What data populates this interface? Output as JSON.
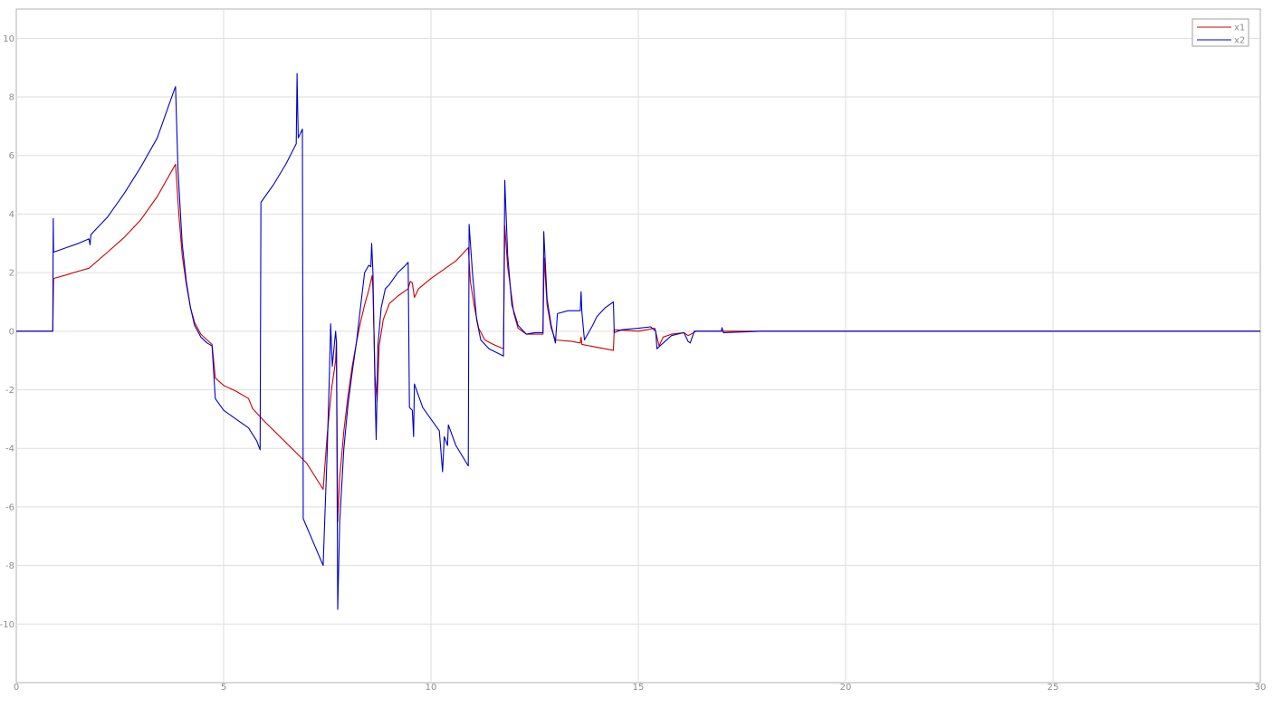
{
  "chart_data": {
    "type": "line",
    "title": "",
    "xlabel": "",
    "ylabel": "",
    "xlim": [
      0,
      30
    ],
    "ylim": [
      -12,
      11
    ],
    "grid": true,
    "legend_position": "top-right",
    "x_ticks": [
      0,
      5,
      10,
      15,
      20,
      25,
      30
    ],
    "x_tick_labels": [
      "0",
      "5",
      "10",
      "15",
      "20",
      "25",
      "30"
    ],
    "y_ticks": [
      10,
      8,
      6,
      4,
      2,
      0,
      -2,
      -4,
      -6,
      -8,
      -10
    ],
    "y_tick_labels": [
      "10",
      "8",
      "6",
      "4",
      "2",
      "0",
      "-2",
      "-4",
      "-6",
      "-8",
      "-10"
    ],
    "series": [
      {
        "name": "x1",
        "color": "#cc0000",
        "points": [
          [
            0,
            0
          ],
          [
            0.88,
            0
          ],
          [
            0.9,
            1.8
          ],
          [
            1.2,
            1.92
          ],
          [
            1.5,
            2.05
          ],
          [
            1.75,
            2.15
          ],
          [
            2.2,
            2.7
          ],
          [
            2.6,
            3.2
          ],
          [
            3.0,
            3.8
          ],
          [
            3.4,
            4.6
          ],
          [
            3.8,
            5.6
          ],
          [
            3.84,
            5.7
          ],
          [
            3.92,
            4.0
          ],
          [
            4.0,
            2.6
          ],
          [
            4.1,
            1.6
          ],
          [
            4.2,
            0.8
          ],
          [
            4.3,
            0.3
          ],
          [
            4.45,
            -0.1
          ],
          [
            4.6,
            -0.3
          ],
          [
            4.72,
            -0.45
          ],
          [
            4.8,
            -1.6
          ],
          [
            5.0,
            -1.85
          ],
          [
            5.3,
            -2.05
          ],
          [
            5.6,
            -2.3
          ],
          [
            5.7,
            -2.65
          ],
          [
            6.0,
            -3.1
          ],
          [
            6.5,
            -3.8
          ],
          [
            7.0,
            -4.5
          ],
          [
            7.4,
            -5.4
          ],
          [
            7.5,
            -3.5
          ],
          [
            7.6,
            -2.0
          ],
          [
            7.7,
            -1.0
          ],
          [
            7.72,
            -0.3
          ],
          [
            7.75,
            -6.5
          ],
          [
            7.8,
            -5.0
          ],
          [
            7.9,
            -3.4
          ],
          [
            8.0,
            -2.2
          ],
          [
            8.1,
            -1.2
          ],
          [
            8.2,
            -0.4
          ],
          [
            8.3,
            0.3
          ],
          [
            8.4,
            0.9
          ],
          [
            8.5,
            1.4
          ],
          [
            8.58,
            1.9
          ],
          [
            8.6,
            1.4
          ],
          [
            8.65,
            -1.5
          ],
          [
            8.7,
            -2.4
          ],
          [
            8.75,
            -0.5
          ],
          [
            8.85,
            0.4
          ],
          [
            9.0,
            0.95
          ],
          [
            9.2,
            1.2
          ],
          [
            9.45,
            1.45
          ],
          [
            9.5,
            1.7
          ],
          [
            9.55,
            1.65
          ],
          [
            9.6,
            1.15
          ],
          [
            9.7,
            1.45
          ],
          [
            10.0,
            1.8
          ],
          [
            10.3,
            2.1
          ],
          [
            10.6,
            2.4
          ],
          [
            10.9,
            2.85
          ],
          [
            10.95,
            1.7
          ],
          [
            11.05,
            0.8
          ],
          [
            11.15,
            0.1
          ],
          [
            11.3,
            -0.3
          ],
          [
            11.5,
            -0.45
          ],
          [
            11.75,
            -0.6
          ],
          [
            11.78,
            3.6
          ],
          [
            11.85,
            2.2
          ],
          [
            12.0,
            0.6
          ],
          [
            12.1,
            0.1
          ],
          [
            12.3,
            -0.1
          ],
          [
            12.7,
            -0.1
          ],
          [
            12.73,
            2.5
          ],
          [
            12.8,
            0.9
          ],
          [
            12.9,
            0.1
          ],
          [
            13.0,
            -0.3
          ],
          [
            13.4,
            -0.35
          ],
          [
            13.6,
            -0.4
          ],
          [
            13.62,
            -0.2
          ],
          [
            13.64,
            -0.45
          ],
          [
            14.0,
            -0.55
          ],
          [
            14.4,
            -0.65
          ],
          [
            14.42,
            0.05
          ],
          [
            15.0,
            0.0
          ],
          [
            15.4,
            0.1
          ],
          [
            15.5,
            -0.5
          ],
          [
            15.6,
            -0.2
          ],
          [
            15.8,
            -0.1
          ],
          [
            16.1,
            -0.05
          ],
          [
            16.2,
            -0.15
          ],
          [
            16.4,
            0.0
          ],
          [
            17.0,
            0.0
          ],
          [
            18.0,
            0.0
          ],
          [
            20.0,
            0.0
          ],
          [
            25.0,
            0.0
          ],
          [
            30.0,
            0.0
          ]
        ]
      },
      {
        "name": "x2",
        "color": "#0000cc",
        "points": [
          [
            0,
            0
          ],
          [
            0.88,
            0
          ],
          [
            0.89,
            3.85
          ],
          [
            0.9,
            2.7
          ],
          [
            1.2,
            2.85
          ],
          [
            1.5,
            3.0
          ],
          [
            1.75,
            3.15
          ],
          [
            1.78,
            2.95
          ],
          [
            1.8,
            3.3
          ],
          [
            2.2,
            3.9
          ],
          [
            2.6,
            4.7
          ],
          [
            3.0,
            5.6
          ],
          [
            3.4,
            6.6
          ],
          [
            3.8,
            8.2
          ],
          [
            3.84,
            8.35
          ],
          [
            3.9,
            5.5
          ],
          [
            4.0,
            3.0
          ],
          [
            4.1,
            1.7
          ],
          [
            4.2,
            0.8
          ],
          [
            4.3,
            0.2
          ],
          [
            4.45,
            -0.2
          ],
          [
            4.6,
            -0.4
          ],
          [
            4.72,
            -0.5
          ],
          [
            4.8,
            -2.3
          ],
          [
            5.0,
            -2.7
          ],
          [
            5.3,
            -3.0
          ],
          [
            5.6,
            -3.3
          ],
          [
            5.8,
            -3.75
          ],
          [
            5.88,
            -4.05
          ],
          [
            5.9,
            4.4
          ],
          [
            6.2,
            5.0
          ],
          [
            6.5,
            5.7
          ],
          [
            6.75,
            6.4
          ],
          [
            6.77,
            8.8
          ],
          [
            6.8,
            6.6
          ],
          [
            6.9,
            6.9
          ],
          [
            6.92,
            -6.4
          ],
          [
            7.1,
            -7.0
          ],
          [
            7.4,
            -8.0
          ],
          [
            7.5,
            -4.0
          ],
          [
            7.55,
            -1.5
          ],
          [
            7.58,
            0.25
          ],
          [
            7.62,
            -1.2
          ],
          [
            7.7,
            0.0
          ],
          [
            7.72,
            -0.4
          ],
          [
            7.75,
            -9.5
          ],
          [
            7.8,
            -6.5
          ],
          [
            7.9,
            -4.0
          ],
          [
            8.0,
            -2.5
          ],
          [
            8.1,
            -1.4
          ],
          [
            8.2,
            -0.4
          ],
          [
            8.3,
            0.8
          ],
          [
            8.4,
            2.0
          ],
          [
            8.5,
            2.25
          ],
          [
            8.55,
            2.2
          ],
          [
            8.57,
            3.0
          ],
          [
            8.6,
            2.0
          ],
          [
            8.65,
            -2.0
          ],
          [
            8.68,
            -3.7
          ],
          [
            8.72,
            -0.5
          ],
          [
            8.8,
            0.8
          ],
          [
            8.9,
            1.45
          ],
          [
            9.0,
            1.6
          ],
          [
            9.2,
            2.0
          ],
          [
            9.35,
            2.2
          ],
          [
            9.45,
            2.35
          ],
          [
            9.48,
            -2.6
          ],
          [
            9.55,
            -2.7
          ],
          [
            9.58,
            -3.6
          ],
          [
            9.6,
            -1.8
          ],
          [
            9.8,
            -2.6
          ],
          [
            10.0,
            -3.0
          ],
          [
            10.2,
            -3.4
          ],
          [
            10.28,
            -4.8
          ],
          [
            10.32,
            -3.6
          ],
          [
            10.4,
            -3.9
          ],
          [
            10.42,
            -3.2
          ],
          [
            10.6,
            -3.9
          ],
          [
            10.9,
            -4.6
          ],
          [
            10.92,
            3.65
          ],
          [
            11.0,
            2.0
          ],
          [
            11.1,
            0.4
          ],
          [
            11.2,
            -0.3
          ],
          [
            11.4,
            -0.6
          ],
          [
            11.75,
            -0.85
          ],
          [
            11.78,
            5.15
          ],
          [
            11.85,
            2.6
          ],
          [
            11.95,
            0.9
          ],
          [
            12.1,
            0.2
          ],
          [
            12.3,
            -0.1
          ],
          [
            12.5,
            -0.05
          ],
          [
            12.7,
            -0.05
          ],
          [
            12.72,
            3.4
          ],
          [
            12.8,
            1.1
          ],
          [
            12.9,
            0.2
          ],
          [
            13.0,
            -0.4
          ],
          [
            13.05,
            0.6
          ],
          [
            13.3,
            0.7
          ],
          [
            13.6,
            0.7
          ],
          [
            13.62,
            1.35
          ],
          [
            13.64,
            0.65
          ],
          [
            13.7,
            -0.3
          ],
          [
            13.8,
            -0.05
          ],
          [
            13.9,
            0.2
          ],
          [
            14.0,
            0.5
          ],
          [
            14.2,
            0.8
          ],
          [
            14.4,
            1.0
          ],
          [
            14.42,
            -0.05
          ],
          [
            14.6,
            0.05
          ],
          [
            15.0,
            0.1
          ],
          [
            15.3,
            0.15
          ],
          [
            15.42,
            0.0
          ],
          [
            15.45,
            -0.6
          ],
          [
            15.6,
            -0.4
          ],
          [
            15.8,
            -0.15
          ],
          [
            16.1,
            -0.05
          ],
          [
            16.2,
            -0.35
          ],
          [
            16.25,
            -0.4
          ],
          [
            16.35,
            0.0
          ],
          [
            17.0,
            0.0
          ],
          [
            17.02,
            0.12
          ],
          [
            17.05,
            -0.05
          ],
          [
            18.0,
            0.0
          ],
          [
            18.8,
            0.0
          ],
          [
            20.0,
            0.0
          ],
          [
            25.0,
            0.0
          ],
          [
            30.0,
            0.0
          ]
        ]
      }
    ]
  }
}
